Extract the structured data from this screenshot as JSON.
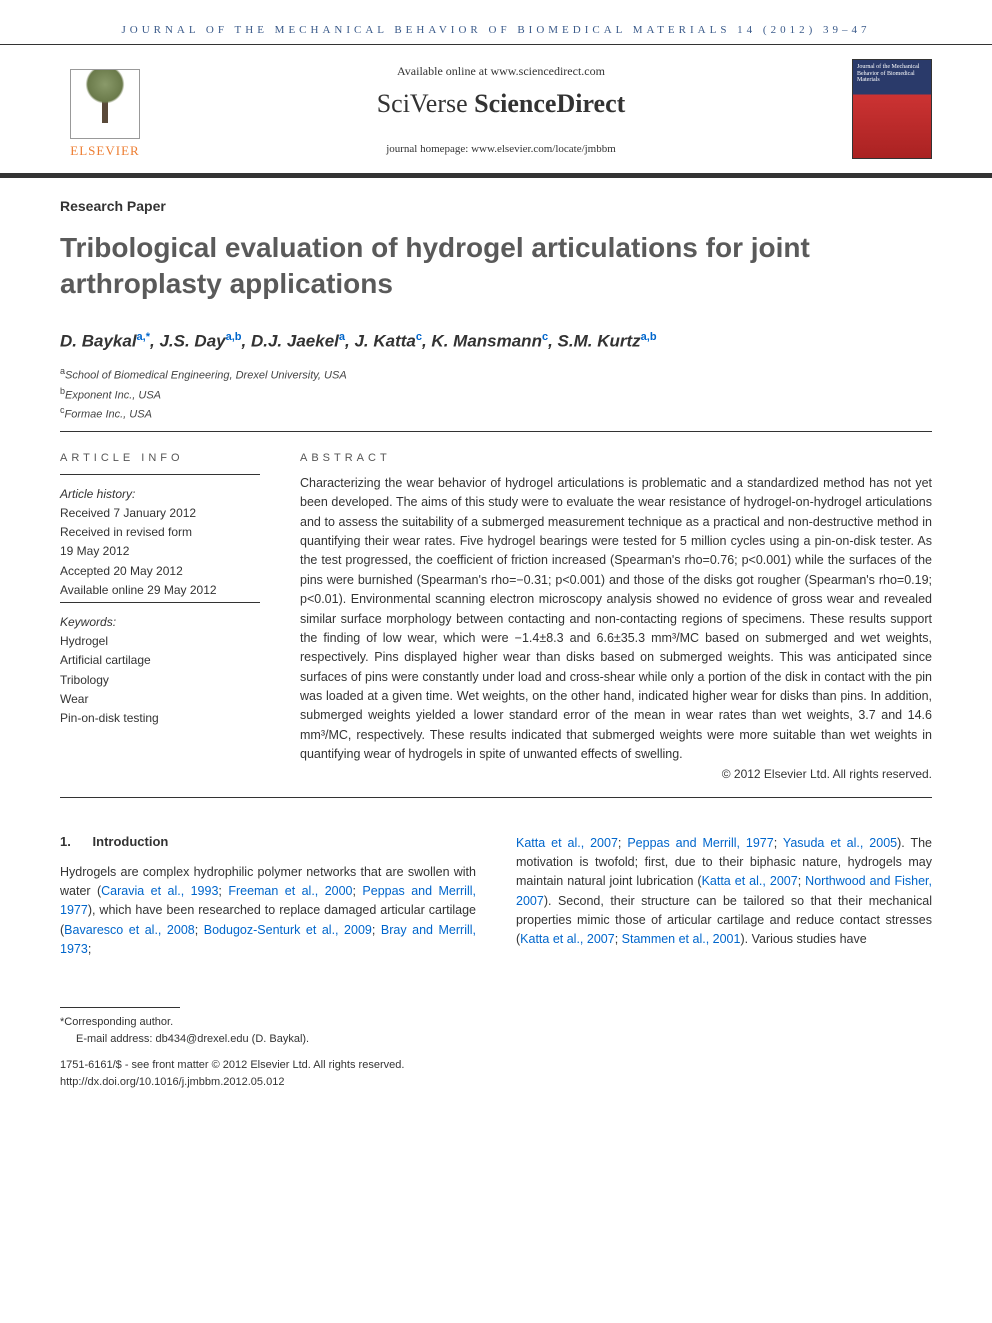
{
  "running_head": "JOURNAL OF THE MECHANICAL BEHAVIOR OF BIOMEDICAL MATERIALS 14 (2012) 39–47",
  "banner": {
    "publisher_logo": "ELSEVIER",
    "available": "Available online at www.sciencedirect.com",
    "sciverse_prefix": "SciVerse",
    "sciverse_bold": " ScienceDirect",
    "homepage": "journal homepage: www.elsevier.com/locate/jmbbm",
    "cover_title": "Journal of the Mechanical Behavior of Biomedical Materials"
  },
  "category": "Research Paper",
  "title": "Tribological evaluation of hydrogel articulations for joint arthroplasty applications",
  "authors_html": "D. Baykal<sup class='sup-link'>a,*</sup>, J.S. Day<sup class='sup-link'>a,b</sup>, D.J. Jaekel<sup class='sup-link'>a</sup>, J. Katta<sup class='sup-link'>c</sup>, K. Mansmann<sup class='sup-link'>c</sup>, S.M. Kurtz<sup class='sup-link'>a,b</sup>",
  "affiliations": [
    "<sup>a</sup>School of Biomedical Engineering, Drexel University, USA",
    "<sup>b</sup>Exponent Inc., USA",
    "<sup>c</sup>Formae Inc., USA"
  ],
  "info": {
    "head": "ARTICLE INFO",
    "history_label": "Article history:",
    "history": [
      "Received 7 January 2012",
      "Received in revised form",
      "19 May 2012",
      "Accepted 20 May 2012",
      "Available online 29 May 2012"
    ],
    "keywords_label": "Keywords:",
    "keywords": [
      "Hydrogel",
      "Artificial cartilage",
      "Tribology",
      "Wear",
      "Pin-on-disk testing"
    ]
  },
  "abstract": {
    "head": "ABSTRACT",
    "text": "Characterizing the wear behavior of hydrogel articulations is problematic and a standardized method has not yet been developed. The aims of this study were to evaluate the wear resistance of hydrogel-on-hydrogel articulations and to assess the suitability of a submerged measurement technique as a practical and non-destructive method in quantifying their wear rates. Five hydrogel bearings were tested for 5 million cycles using a pin-on-disk tester. As the test progressed, the coefficient of friction increased (Spearman's rho=0.76; p<0.001) while the surfaces of the pins were burnished (Spearman's rho=−0.31; p<0.001) and those of the disks got rougher (Spearman's rho=0.19; p<0.01). Environmental scanning electron microscopy analysis showed no evidence of gross wear and revealed similar surface morphology between contacting and non-contacting regions of specimens. These results support the finding of low wear, which were −1.4±8.3 and 6.6±35.3 mm³/MC based on submerged and wet weights, respectively. Pins displayed higher wear than disks based on submerged weights. This was anticipated since surfaces of pins were constantly under load and cross-shear while only a portion of the disk in contact with the pin was loaded at a given time. Wet weights, on the other hand, indicated higher wear for disks than pins. In addition, submerged weights yielded a lower standard error of the mean in wear rates than wet weights, 3.7 and 14.6 mm³/MC, respectively. These results indicated that submerged weights were more suitable than wet weights in quantifying wear of hydrogels in spite of unwanted effects of swelling.",
    "copyright": "© 2012 Elsevier Ltd. All rights reserved."
  },
  "intro": {
    "head_num": "1.",
    "head_text": "Introduction",
    "col1": "Hydrogels are complex hydrophilic polymer networks that are swollen with water (<span class='ref'>Caravia et al., 1993</span>; <span class='ref'>Freeman et al., 2000</span>; <span class='ref'>Peppas and Merrill, 1977</span>), which have been researched to replace damaged articular cartilage (<span class='ref'>Bavaresco et al., 2008</span>; <span class='ref'>Bodugoz-Senturk et al., 2009</span>; <span class='ref'>Bray and Merrill, 1973</span>;",
    "col2": "<span class='ref'>Katta et al., 2007</span>; <span class='ref'>Peppas and Merrill, 1977</span>; <span class='ref'>Yasuda et al., 2005</span>). The motivation is twofold; first, due to their biphasic nature, hydrogels may maintain natural joint lubrication (<span class='ref'>Katta et al., 2007</span>; <span class='ref'>Northwood and Fisher, 2007</span>). Second, their structure can be tailored so that their mechanical properties mimic those of articular cartilage and reduce contact stresses (<span class='ref'>Katta et al., 2007</span>; <span class='ref'>Stammen et al., 2001</span>). Various studies have"
  },
  "footer": {
    "corresponding": "*Corresponding author.",
    "email": "E-mail address: db434@drexel.edu (D. Baykal).",
    "front_matter": "1751-6161/$ - see front matter © 2012 Elsevier Ltd. All rights reserved.",
    "doi": "http://dx.doi.org/10.1016/j.jmbbm.2012.05.012"
  },
  "colors": {
    "header_text": "#3a5a8a",
    "publisher_orange": "#ed7d31",
    "link_blue": "#0066cc",
    "title_gray": "#5a5a5a"
  }
}
